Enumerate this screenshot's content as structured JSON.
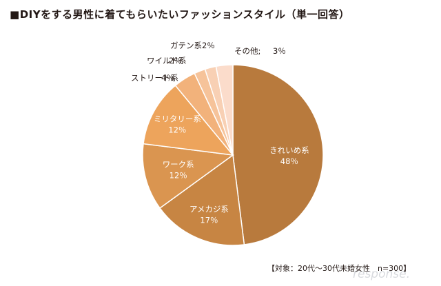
{
  "header": {
    "marker": "■",
    "title": "DIYをする男性に着てもらいたいファッションスタイル（単一回答）"
  },
  "chart_data": {
    "type": "pie",
    "title": "DIYをする男性に着てもらいたいファッションスタイル（単一回答）",
    "unit": "%",
    "start": "12 o'clock",
    "direction": "clockwise",
    "slices": [
      {
        "name": "きれいめ系",
        "value": 48,
        "value_label": "48％",
        "color": "#b87a3d",
        "label_position": "inside"
      },
      {
        "name": "アメカジ系",
        "value": 17,
        "value_label": "17％",
        "color": "#c78543",
        "label_position": "inside"
      },
      {
        "name": "ワーク系",
        "value": 12,
        "value_label": "12％",
        "color": "#da9550",
        "label_position": "inside"
      },
      {
        "name": "ミリタリー系",
        "value": 12,
        "value_label": "12％",
        "color": "#eda45c",
        "label_position": "inside"
      },
      {
        "name": "ストリート系",
        "value": 4,
        "value_label": "4％",
        "color": "#f2b27b",
        "label_position": "outside"
      },
      {
        "name": "ワイルド系",
        "value": 2,
        "value_label": "2％",
        "color": "#f6c39a",
        "label_position": "outside"
      },
      {
        "name": "ガテン系",
        "value": 2,
        "value_label": "2％",
        "color": "#f8d0b4",
        "label_position": "outside"
      },
      {
        "name": "その他",
        "value": 3,
        "value_label": "3％",
        "color": "#fbdccb",
        "label_position": "outside"
      }
    ]
  },
  "footnote": "【対象：20代～30代未婚女性　n=300】",
  "watermark": "response."
}
